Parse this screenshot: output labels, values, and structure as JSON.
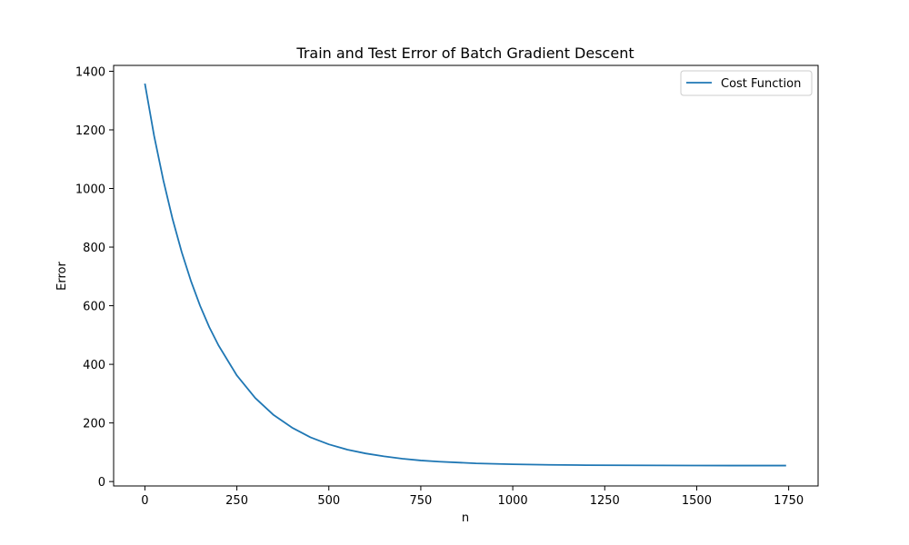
{
  "chart_data": {
    "type": "line",
    "title": "Train and Test Error of Batch Gradient Descent",
    "xlabel": "n",
    "ylabel": "Error",
    "xlim": [
      -85,
      1830
    ],
    "ylim": [
      -15,
      1420
    ],
    "xticks": [
      0,
      250,
      500,
      750,
      1000,
      1250,
      1500,
      1750
    ],
    "yticks": [
      0,
      200,
      400,
      600,
      800,
      1000,
      1200,
      1400
    ],
    "grid": false,
    "legend_position": "top-right",
    "series": [
      {
        "name": "Cost Function",
        "color": "#1f77b4",
        "x": [
          0,
          25,
          50,
          75,
          100,
          125,
          150,
          175,
          200,
          250,
          300,
          350,
          400,
          450,
          500,
          550,
          600,
          650,
          700,
          750,
          800,
          900,
          1000,
          1100,
          1200,
          1300,
          1400,
          1500,
          1600,
          1743
        ],
        "y": [
          1358,
          1180,
          1029,
          897,
          783,
          685,
          600,
          527,
          465,
          362,
          285,
          227,
          184,
          151,
          127,
          109,
          96,
          86,
          78,
          72,
          68,
          62,
          59,
          57,
          56,
          55.5,
          55,
          54.8,
          54.6,
          54.5
        ]
      }
    ]
  }
}
